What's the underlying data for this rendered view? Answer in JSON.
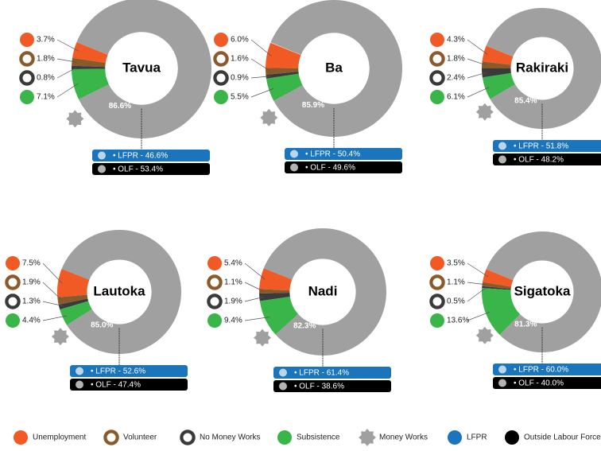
{
  "legend": [
    {
      "name": "Unemployment",
      "color": "#f15a24"
    },
    {
      "name": "Volunteer",
      "color": "#8b5a2b"
    },
    {
      "name": "No Money Works",
      "color": "#3a3a3a"
    },
    {
      "name": "Subsistence",
      "color": "#39b54a"
    },
    {
      "name": "Money Works",
      "color": "#a0a0a0"
    },
    {
      "name": "LFPR",
      "color": "#1b75bc"
    },
    {
      "name": "Outside Labour Force",
      "color": "#000000"
    }
  ],
  "chart_data": [
    {
      "type": "pie",
      "title": "Tavua",
      "values": [
        3.7,
        1.8,
        0.8,
        7.1,
        86.6
      ],
      "value_labels": [
        "3.7%",
        "1.8%",
        "0.8%",
        "7.1%",
        "86.6%"
      ],
      "lfpr_label": "• LFPR - 46.6%",
      "olf_label": "• OLF - 53.4%"
    },
    {
      "type": "pie",
      "title": "Ba",
      "values": [
        6.0,
        1.6,
        0.9,
        5.5,
        85.9
      ],
      "value_labels": [
        "6.0%",
        "1.6%",
        "0.9%",
        "5.5%",
        "85.9%"
      ],
      "lfpr_label": "• LFPR - 50.4%",
      "olf_label": "• OLF - 49.6%"
    },
    {
      "type": "pie",
      "title": "Rakiraki",
      "values": [
        4.3,
        1.8,
        2.4,
        6.1,
        85.4
      ],
      "value_labels": [
        "4.3%",
        "1.8%",
        "2.4%",
        "6.1%",
        "85.4%"
      ],
      "lfpr_label": "• LFPR - 51.8%",
      "olf_label": "• OLF - 48.2%"
    },
    {
      "type": "pie",
      "title": "Lautoka",
      "values": [
        7.5,
        1.9,
        1.3,
        4.4,
        85.0
      ],
      "value_labels": [
        "7.5%",
        "1.9%",
        "1.3%",
        "4.4%",
        "85.0%"
      ],
      "lfpr_label": "• LFPR - 52.6%",
      "olf_label": "• OLF - 47.4%"
    },
    {
      "type": "pie",
      "title": "Nadi",
      "values": [
        5.4,
        1.1,
        1.9,
        9.4,
        82.3
      ],
      "value_labels": [
        "5.4%",
        "1.1%",
        "1.9%",
        "9.4%",
        "82.3%"
      ],
      "lfpr_label": "• LFPR - 61.4%",
      "olf_label": "• OLF - 38.6%"
    },
    {
      "type": "pie",
      "title": "Sigatoka",
      "values": [
        3.5,
        1.1,
        0.5,
        13.6,
        81.3
      ],
      "value_labels": [
        "3.5%",
        "1.1%",
        "0.5%",
        "13.6%",
        "81.3%"
      ],
      "lfpr_label": "• LFPR - 60.0%",
      "olf_label": "• OLF - 40.0%"
    }
  ]
}
